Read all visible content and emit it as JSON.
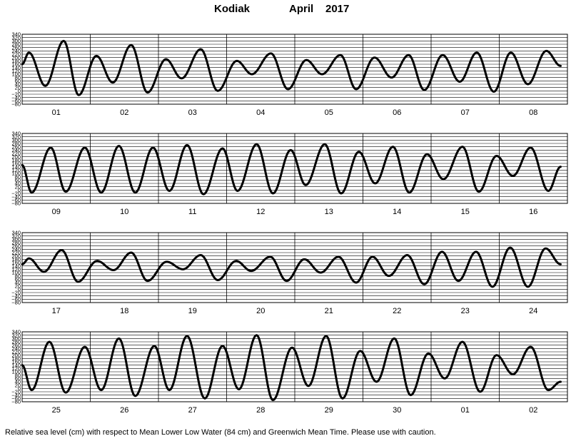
{
  "title": {
    "station": "Kodiak",
    "month": "April",
    "year": "2017"
  },
  "footnote": "Relative sea level (cm) with respect to Mean Lower Low Water (84 cm) and Greenwich Mean Time. Please use with caution.",
  "chart_data": {
    "type": "line",
    "xlabel": "",
    "ylabel": "",
    "ylim": [
      -80,
      340
    ],
    "yticks": [
      340,
      320,
      300,
      280,
      260,
      240,
      220,
      200,
      180,
      160,
      140,
      120,
      100,
      80,
      60,
      40,
      20,
      0,
      -20,
      -40,
      -60,
      -80
    ],
    "ytick_labels": [
      "340",
      "320",
      "300",
      "280",
      "260",
      "240",
      "220",
      "200",
      "180",
      "160",
      "140",
      "120",
      "100",
      "80",
      "60",
      "40",
      "20",
      "0",
      "−20",
      "−40",
      "−60",
      "−80"
    ],
    "grid": true,
    "line_color": "#000000",
    "panels": [
      {
        "days": [
          "01",
          "02",
          "03",
          "04",
          "05",
          "06",
          "07",
          "08"
        ],
        "extremes": [
          [
            0,
            160
          ],
          [
            0.1,
            230
          ],
          [
            0.34,
            30
          ],
          [
            0.61,
            300
          ],
          [
            0.83,
            -25
          ],
          [
            1.09,
            210
          ],
          [
            1.33,
            50
          ],
          [
            1.6,
            275
          ],
          [
            1.84,
            -10
          ],
          [
            2.11,
            190
          ],
          [
            2.34,
            75
          ],
          [
            2.62,
            250
          ],
          [
            2.87,
            0
          ],
          [
            3.15,
            180
          ],
          [
            3.37,
            100
          ],
          [
            3.65,
            225
          ],
          [
            3.9,
            10
          ],
          [
            4.17,
            185
          ],
          [
            4.4,
            100
          ],
          [
            4.67,
            215
          ],
          [
            4.9,
            10
          ],
          [
            5.17,
            200
          ],
          [
            5.42,
            80
          ],
          [
            5.67,
            215
          ],
          [
            5.9,
            5
          ],
          [
            6.17,
            215
          ],
          [
            6.42,
            55
          ],
          [
            6.67,
            230
          ],
          [
            6.92,
            -5
          ],
          [
            7.17,
            230
          ],
          [
            7.42,
            40
          ],
          [
            7.69,
            240
          ],
          [
            7.9,
            150
          ]
        ]
      },
      {
        "days": [
          "09",
          "10",
          "11",
          "12",
          "13",
          "14",
          "15",
          "16"
        ],
        "extremes": [
          [
            0,
            150
          ],
          [
            0.14,
            -15
          ],
          [
            0.42,
            255
          ],
          [
            0.64,
            -10
          ],
          [
            0.92,
            255
          ],
          [
            1.16,
            -15
          ],
          [
            1.42,
            265
          ],
          [
            1.66,
            -15
          ],
          [
            1.92,
            255
          ],
          [
            2.16,
            -5
          ],
          [
            2.42,
            270
          ],
          [
            2.66,
            -25
          ],
          [
            2.94,
            250
          ],
          [
            3.16,
            -5
          ],
          [
            3.44,
            275
          ],
          [
            3.68,
            -20
          ],
          [
            3.94,
            240
          ],
          [
            4.16,
            30
          ],
          [
            4.44,
            275
          ],
          [
            4.68,
            -20
          ],
          [
            4.94,
            230
          ],
          [
            5.18,
            40
          ],
          [
            5.44,
            260
          ],
          [
            5.68,
            -15
          ],
          [
            5.94,
            215
          ],
          [
            6.18,
            65
          ],
          [
            6.46,
            260
          ],
          [
            6.7,
            -10
          ],
          [
            6.96,
            205
          ],
          [
            7.2,
            85
          ],
          [
            7.46,
            255
          ],
          [
            7.72,
            -5
          ],
          [
            7.9,
            140
          ]
        ]
      },
      {
        "days": [
          "17",
          "18",
          "19",
          "20",
          "21",
          "22",
          "23",
          "24"
        ],
        "extremes": [
          [
            0,
            150
          ],
          [
            0.1,
            185
          ],
          [
            0.32,
            105
          ],
          [
            0.58,
            235
          ],
          [
            0.82,
            45
          ],
          [
            1.1,
            170
          ],
          [
            1.34,
            115
          ],
          [
            1.6,
            220
          ],
          [
            1.84,
            50
          ],
          [
            2.12,
            165
          ],
          [
            2.36,
            120
          ],
          [
            2.62,
            205
          ],
          [
            2.87,
            55
          ],
          [
            3.14,
            170
          ],
          [
            3.36,
            110
          ],
          [
            3.64,
            195
          ],
          [
            3.88,
            50
          ],
          [
            4.14,
            180
          ],
          [
            4.38,
            100
          ],
          [
            4.64,
            195
          ],
          [
            4.9,
            40
          ],
          [
            5.14,
            195
          ],
          [
            5.38,
            80
          ],
          [
            5.65,
            205
          ],
          [
            5.9,
            30
          ],
          [
            6.16,
            225
          ],
          [
            6.4,
            50
          ],
          [
            6.66,
            225
          ],
          [
            6.9,
            15
          ],
          [
            7.16,
            250
          ],
          [
            7.42,
            15
          ],
          [
            7.68,
            245
          ],
          [
            7.9,
            150
          ]
        ]
      },
      {
        "days": [
          "25",
          "26",
          "27",
          "28",
          "29",
          "30",
          "01",
          "02"
        ],
        "extremes": [
          [
            0,
            140
          ],
          [
            0.14,
            -10
          ],
          [
            0.4,
            280
          ],
          [
            0.64,
            -25
          ],
          [
            0.92,
            250
          ],
          [
            1.16,
            -10
          ],
          [
            1.42,
            300
          ],
          [
            1.66,
            -45
          ],
          [
            1.94,
            255
          ],
          [
            2.16,
            -10
          ],
          [
            2.42,
            315
          ],
          [
            2.68,
            -60
          ],
          [
            2.94,
            255
          ],
          [
            3.18,
            -5
          ],
          [
            3.44,
            320
          ],
          [
            3.68,
            -70
          ],
          [
            3.96,
            245
          ],
          [
            4.2,
            15
          ],
          [
            4.46,
            315
          ],
          [
            4.7,
            -60
          ],
          [
            4.96,
            225
          ],
          [
            5.2,
            40
          ],
          [
            5.46,
            300
          ],
          [
            5.7,
            -40
          ],
          [
            5.96,
            210
          ],
          [
            6.2,
            60
          ],
          [
            6.46,
            280
          ],
          [
            6.72,
            -20
          ],
          [
            6.96,
            200
          ],
          [
            7.2,
            85
          ],
          [
            7.46,
            250
          ],
          [
            7.72,
            -10
          ],
          [
            7.9,
            40
          ]
        ]
      }
    ]
  }
}
